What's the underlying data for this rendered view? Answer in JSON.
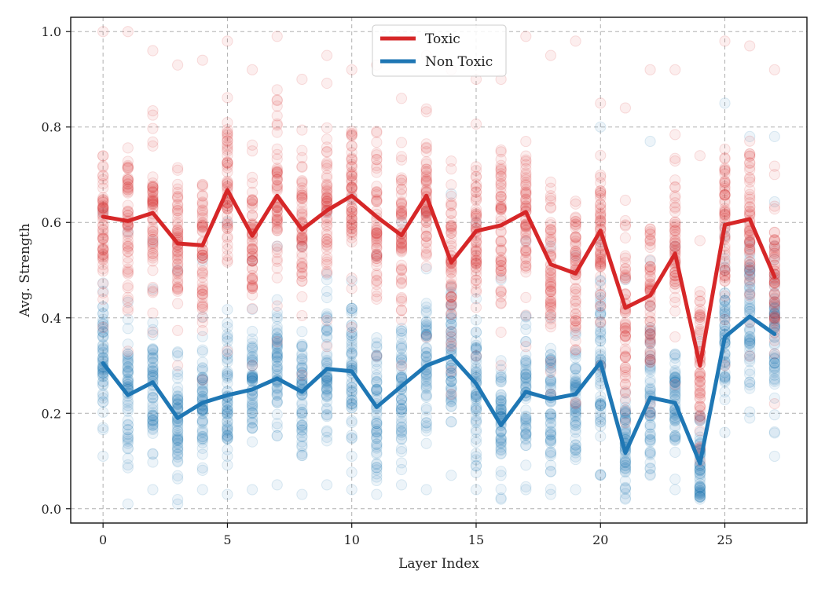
{
  "chart_data": {
    "type": "line",
    "title": "",
    "xlabel": "Layer Index",
    "ylabel": "Avg. Strength",
    "xlim": [
      -1.3,
      28.3
    ],
    "ylim": [
      -0.03,
      1.03
    ],
    "xticks": [
      0,
      5,
      10,
      15,
      20,
      25
    ],
    "xtick_labels": [
      "0",
      "5",
      "10",
      "15",
      "20",
      "25"
    ],
    "yticks": [
      0.0,
      0.2,
      0.4,
      0.6,
      0.8,
      1.0
    ],
    "ytick_labels": [
      "0.0",
      "0.2",
      "0.4",
      "0.6",
      "0.8",
      "1.0"
    ],
    "grid": true,
    "legend_position": "top-center",
    "x": [
      0,
      1,
      2,
      3,
      4,
      5,
      6,
      7,
      8,
      9,
      10,
      11,
      12,
      13,
      14,
      15,
      16,
      17,
      18,
      19,
      20,
      21,
      22,
      23,
      24,
      25,
      26,
      27
    ],
    "series": [
      {
        "name": "Toxic",
        "color": "#d62728",
        "values": [
          0.612,
          0.603,
          0.62,
          0.556,
          0.552,
          0.668,
          0.572,
          0.656,
          0.585,
          0.625,
          0.656,
          0.612,
          0.573,
          0.656,
          0.516,
          0.582,
          0.594,
          0.622,
          0.512,
          0.493,
          0.583,
          0.421,
          0.447,
          0.535,
          0.3,
          0.595,
          0.607,
          0.486
        ],
        "scatter_range_min": [
          0.38,
          0.33,
          0.37,
          0.3,
          0.27,
          0.33,
          0.3,
          0.35,
          0.28,
          0.34,
          0.38,
          0.32,
          0.3,
          0.36,
          0.24,
          0.32,
          0.3,
          0.34,
          0.24,
          0.22,
          0.3,
          0.18,
          0.2,
          0.26,
          0.1,
          0.3,
          0.32,
          0.22
        ],
        "scatter_range_max": [
          1.0,
          1.0,
          0.96,
          0.93,
          0.94,
          0.98,
          0.92,
          0.99,
          0.9,
          0.95,
          0.92,
          0.93,
          0.86,
          0.95,
          0.92,
          0.9,
          0.9,
          0.99,
          0.95,
          0.98,
          0.85,
          0.84,
          0.92,
          0.92,
          0.74,
          0.98,
          0.97,
          0.92
        ]
      },
      {
        "name": "Non Toxic",
        "color": "#1f77b4",
        "values": [
          0.305,
          0.238,
          0.265,
          0.19,
          0.222,
          0.238,
          0.25,
          0.273,
          0.245,
          0.293,
          0.288,
          0.213,
          0.257,
          0.3,
          0.32,
          0.262,
          0.175,
          0.245,
          0.23,
          0.24,
          0.307,
          0.117,
          0.233,
          0.222,
          0.095,
          0.36,
          0.403,
          0.366
        ],
        "scatter_range_min": [
          0.11,
          0.01,
          0.04,
          0.01,
          0.04,
          0.03,
          0.04,
          0.05,
          0.03,
          0.05,
          0.04,
          0.03,
          0.05,
          0.04,
          0.07,
          0.04,
          0.02,
          0.04,
          0.03,
          0.04,
          0.07,
          0.02,
          0.07,
          0.04,
          0.02,
          0.16,
          0.19,
          0.11
        ],
        "scatter_range_max": [
          0.62,
          0.58,
          0.56,
          0.5,
          0.52,
          0.6,
          0.52,
          0.55,
          0.55,
          0.62,
          0.65,
          0.53,
          0.6,
          0.62,
          0.66,
          0.6,
          0.48,
          0.56,
          0.55,
          0.53,
          0.8,
          0.48,
          0.77,
          0.55,
          0.35,
          0.85,
          0.78,
          0.78
        ]
      }
    ]
  }
}
